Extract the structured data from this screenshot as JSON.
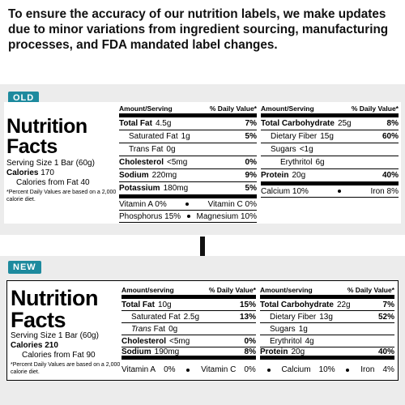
{
  "intro": "To ensure the accuracy of our nutrition labels, we make updates due to minor variations from ingredient sourcing, manufacturing processes, and FDA mandated label changes.",
  "old": {
    "tag": "OLD",
    "title": [
      "Nutrition",
      "Facts"
    ],
    "serving": "Serving Size 1 Bar (60g)",
    "calories": {
      "label": "Calories",
      "value": "170"
    },
    "calories_fat": "Calories from Fat 40",
    "footnote": "*Percent Daily Values are based on a 2,000 calorie diet.",
    "headers": [
      "Amount/Serving",
      "% Daily Value*"
    ],
    "left": [
      {
        "name": "Total Fat",
        "amount": "4.5g",
        "dv": "7%"
      },
      {
        "name": "Saturated Fat",
        "amount": "1g",
        "dv": "5%"
      },
      {
        "name": "Trans Fat",
        "amount": "0g"
      },
      {
        "name": "Cholesterol",
        "amount": "<5mg",
        "dv": "0%"
      },
      {
        "name": "Sodium",
        "amount": "220mg",
        "dv": "9%"
      },
      {
        "name": "Potassium",
        "amount": "180mg",
        "dv": "5%"
      }
    ],
    "right": [
      {
        "name": "Total Carbohydrate",
        "amount": "25g",
        "dv": "8%"
      },
      {
        "name": "Dietary Fiber",
        "amount": "15g",
        "dv": "60%"
      },
      {
        "name": "Sugars",
        "amount": "<1g"
      },
      {
        "name": "Erythritol",
        "amount": "6g"
      },
      {
        "name": "Protein",
        "amount": "20g",
        "dv": "40%"
      }
    ],
    "vitamins_left": [
      [
        "Vitamin A 0%",
        "Vitamin C 0%"
      ],
      [
        "Phosphorus 15%",
        "Magnesium 10%"
      ]
    ],
    "vitamins_right": [
      "Calcium 10%",
      "Iron 8%"
    ]
  },
  "new": {
    "tag": "NEW",
    "title": [
      "Nutrition",
      "Facts"
    ],
    "serving": "Serving Size 1 Bar (60g)",
    "calories": {
      "label": "Calories",
      "value": "210"
    },
    "calories_fat": "Calories from Fat 90",
    "footnote": "*Percent Daily Values are based on a 2,000 calorie diet.",
    "headers": [
      "Amount/serving",
      "% Daily Value*"
    ],
    "left": [
      {
        "name": "Total Fat",
        "amount": "10g",
        "dv": "15%"
      },
      {
        "name": "Saturated Fat",
        "amount": "2.5g",
        "dv": "13%"
      },
      {
        "italic": "Trans",
        "name": "Fat",
        "amount": "0g"
      },
      {
        "name": "Cholesterol",
        "amount": "<5mg",
        "dv": "0%"
      },
      {
        "name": "Sodium",
        "amount": "190mg",
        "dv": "8%"
      }
    ],
    "right": [
      {
        "name": "Total Carbohydrate",
        "amount": "22g",
        "dv": "7%"
      },
      {
        "name": "Dietary Fiber",
        "amount": "13g",
        "dv": "52%"
      },
      {
        "name": "Sugars",
        "amount": "1g"
      },
      {
        "name": "Erythritol",
        "amount": "4g"
      },
      {
        "name": "Protein",
        "amount": "20g",
        "dv": "40%"
      }
    ],
    "vitamins": [
      {
        "name": "Vitamin A",
        "dv": "0%"
      },
      {
        "name": "Vitamin C",
        "dv": "0%"
      },
      {
        "name": "Calcium",
        "dv": "10%"
      },
      {
        "name": "Iron",
        "dv": "4%"
      }
    ]
  }
}
